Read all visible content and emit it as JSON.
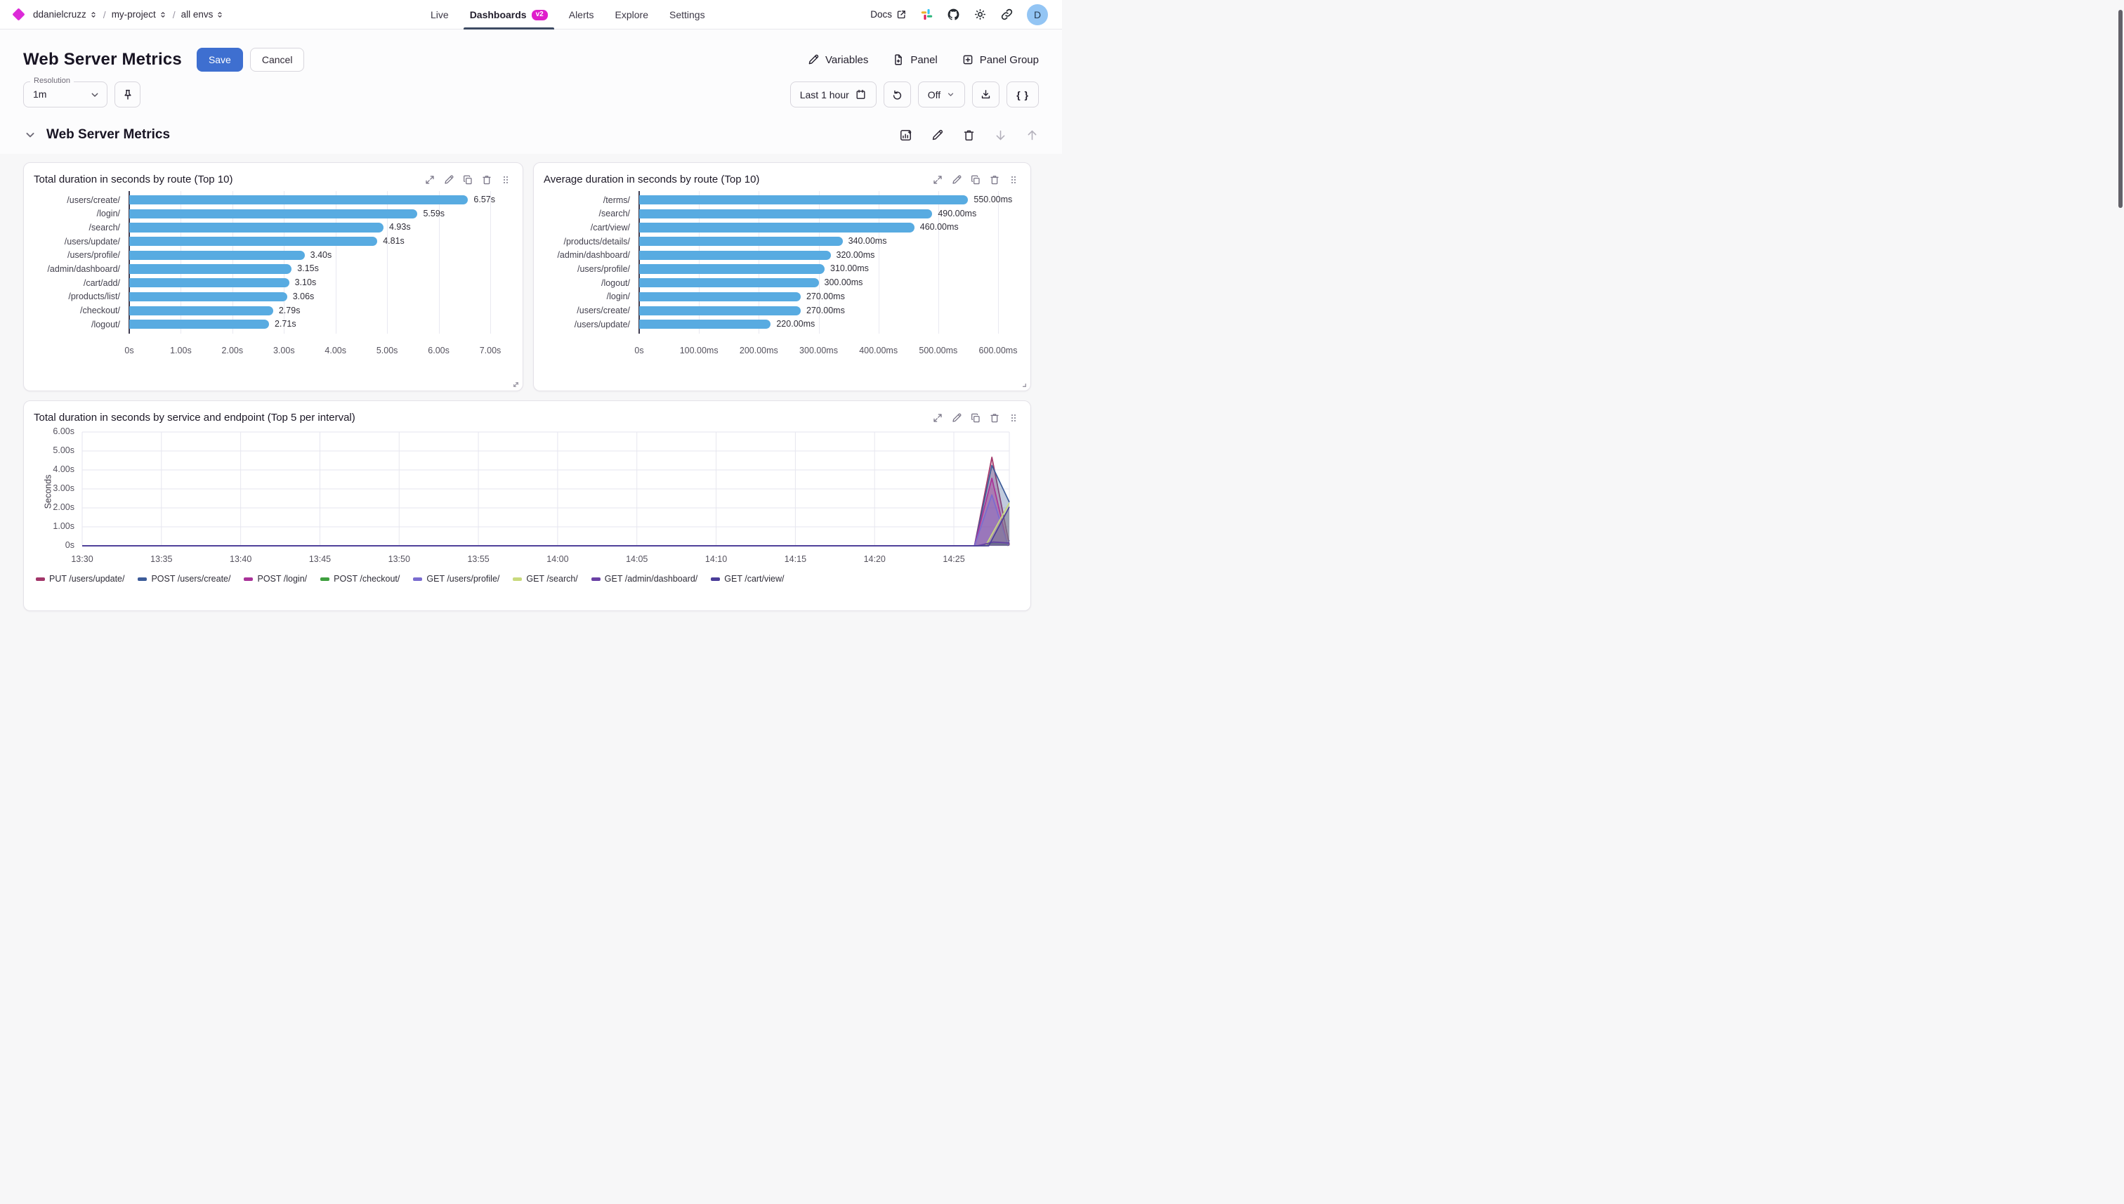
{
  "nav": {
    "breadcrumb": {
      "org": "ddanielcruzz",
      "project": "my-project",
      "env": "all envs"
    },
    "tabs": [
      {
        "label": "Live",
        "active": false
      },
      {
        "label": "Dashboards",
        "badge": "v2",
        "active": true
      },
      {
        "label": "Alerts",
        "active": false
      },
      {
        "label": "Explore",
        "active": false
      },
      {
        "label": "Settings",
        "active": false
      }
    ],
    "docs_label": "Docs",
    "avatar_initial": "D"
  },
  "header": {
    "title": "Web Server Metrics",
    "save_label": "Save",
    "cancel_label": "Cancel",
    "actions": [
      {
        "label": "Variables",
        "icon": "pencil-icon"
      },
      {
        "label": "Panel",
        "icon": "file-plus-icon"
      },
      {
        "label": "Panel Group",
        "icon": "square-plus-icon"
      }
    ]
  },
  "controls": {
    "resolution_label": "Resolution",
    "resolution_value": "1m",
    "pin_icon": "pin-icon",
    "time_range_label": "Last 1 hour",
    "refresh_icon": "refresh-icon",
    "auto_refresh_label": "Off",
    "download_icon": "download-icon",
    "braces_label": "{ }"
  },
  "section": {
    "title": "Web Server Metrics",
    "icons": [
      "add-chart-icon",
      "pencil-icon",
      "trash-icon",
      "arrow-down-icon",
      "arrow-up-icon"
    ]
  },
  "panel_action_icons": [
    "expand-icon",
    "pencil-icon",
    "duplicate-icon",
    "trash-icon",
    "drag-handle-icon"
  ],
  "colors": {
    "accent_blue": "#3e6fd0",
    "badge_magenta": "#df1dcb",
    "logo_magenta": "#dc2ad8",
    "bar_blue": "#58abe1",
    "tab_underline": "#3e4c63",
    "avatar_bg": "#93c5f4"
  },
  "chart_data": [
    {
      "type": "bar",
      "orientation": "horizontal",
      "title": "Total duration in seconds by route (Top 10)",
      "categories": [
        "/users/create/",
        "/login/",
        "/search/",
        "/users/update/",
        "/users/profile/",
        "/admin/dashboard/",
        "/cart/add/",
        "/products/list/",
        "/checkout/",
        "/logout/"
      ],
      "values": [
        6.57,
        5.59,
        4.93,
        4.81,
        3.4,
        3.15,
        3.1,
        3.06,
        2.79,
        2.71
      ],
      "value_labels": [
        "6.57s",
        "5.59s",
        "4.93s",
        "4.81s",
        "3.40s",
        "3.15s",
        "3.10s",
        "3.06s",
        "2.79s",
        "2.71s"
      ],
      "x_ticks": [
        "0s",
        "1.00s",
        "2.00s",
        "3.00s",
        "4.00s",
        "5.00s",
        "6.00s",
        "7.00s"
      ],
      "xlim": [
        0,
        7
      ],
      "bar_color": "#58abe1"
    },
    {
      "type": "bar",
      "orientation": "horizontal",
      "title": "Average duration in seconds by route (Top 10)",
      "categories": [
        "/terms/",
        "/search/",
        "/cart/view/",
        "/products/details/",
        "/admin/dashboard/",
        "/users/profile/",
        "/logout/",
        "/login/",
        "/users/create/",
        "/users/update/"
      ],
      "values": [
        550,
        490,
        460,
        340,
        320,
        310,
        300,
        270,
        270,
        220
      ],
      "value_labels": [
        "550.00ms",
        "490.00ms",
        "460.00ms",
        "340.00ms",
        "320.00ms",
        "310.00ms",
        "300.00ms",
        "270.00ms",
        "270.00ms",
        "220.00ms"
      ],
      "x_ticks": [
        "0s",
        "100.00ms",
        "200.00ms",
        "300.00ms",
        "400.00ms",
        "500.00ms",
        "600.00ms"
      ],
      "xlim": [
        0,
        600
      ],
      "bar_color": "#58abe1"
    },
    {
      "type": "area",
      "title": "Total duration in seconds by service and endpoint (Top 5 per interval)",
      "ylabel": "Seconds",
      "y_ticks": [
        "6.00s",
        "5.00s",
        "4.00s",
        "3.00s",
        "2.00s",
        "1.00s",
        "0s"
      ],
      "ylim": [
        0,
        6
      ],
      "x_ticks": [
        "13:30",
        "13:35",
        "13:40",
        "13:45",
        "13:50",
        "13:55",
        "14:00",
        "14:05",
        "14:10",
        "14:15",
        "14:20",
        "14:25"
      ],
      "x_total_minutes": 58.5,
      "x_tick_interval_minutes": 5,
      "grid": true,
      "legend_position": "bottom",
      "series": [
        {
          "name": "PUT /users/update/",
          "color": "#a23669",
          "points": [
            [
              0,
              0
            ],
            [
              56.3,
              0
            ],
            [
              57.4,
              4.67
            ],
            [
              58.5,
              0.05
            ]
          ]
        },
        {
          "name": "POST /users/create/",
          "color": "#3d5c99",
          "points": [
            [
              0,
              0
            ],
            [
              56.3,
              0
            ],
            [
              57.4,
              4.24
            ],
            [
              58.5,
              2.3
            ]
          ]
        },
        {
          "name": "POST /login/",
          "color": "#a93399",
          "points": [
            [
              0,
              0
            ],
            [
              56.3,
              0
            ],
            [
              57.4,
              3.56
            ],
            [
              58.4,
              0.02
            ],
            [
              58.5,
              0.1
            ]
          ]
        },
        {
          "name": "POST /checkout/",
          "color": "#3f9f3f",
          "points": [
            [
              0,
              0
            ],
            [
              56.5,
              0
            ],
            [
              57.4,
              0.12
            ],
            [
              58.5,
              0.05
            ]
          ]
        },
        {
          "name": "GET /users/profile/",
          "color": "#7a6cd0",
          "points": [
            [
              0,
              0
            ],
            [
              56.3,
              0
            ],
            [
              57.4,
              2.69
            ],
            [
              58.4,
              0.05
            ],
            [
              58.5,
              0.3
            ]
          ]
        },
        {
          "name": "GET /search/",
          "color": "#c9da7d",
          "points": [
            [
              0,
              0
            ],
            [
              57.0,
              0
            ],
            [
              58.5,
              2.26
            ]
          ]
        },
        {
          "name": "GET /admin/dashboard/",
          "color": "#6a41a5",
          "points": [
            [
              0,
              0
            ],
            [
              56.5,
              0
            ],
            [
              57.5,
              0.2
            ],
            [
              58.5,
              0.15
            ]
          ]
        },
        {
          "name": "GET /cart/view/",
          "color": "#4a3d99",
          "points": [
            [
              0,
              0
            ],
            [
              57.2,
              0
            ],
            [
              58.5,
              2.05
            ]
          ]
        }
      ]
    }
  ]
}
